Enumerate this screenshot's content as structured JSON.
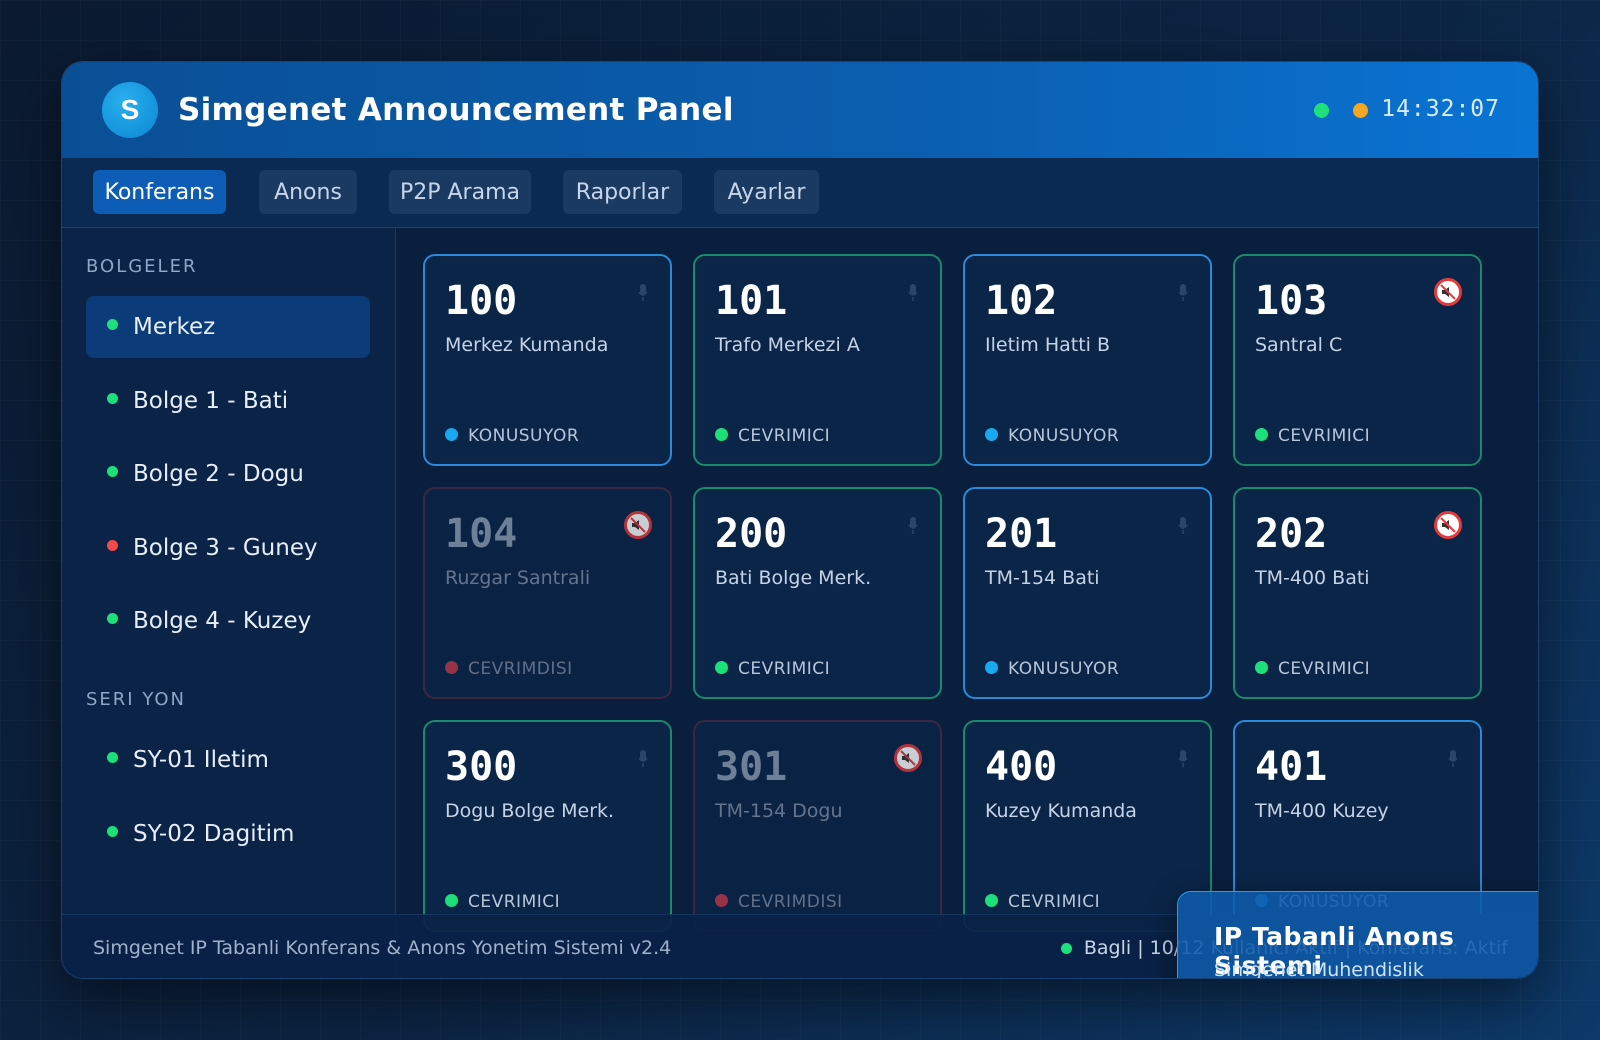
{
  "header": {
    "logo_letter": "S",
    "title": "Simgenet Announcement Panel",
    "clock": "14:32:07",
    "indicator_colors": [
      "#1de07a",
      "#f5a623"
    ]
  },
  "tabs": [
    {
      "label": "Konferans",
      "active": true
    },
    {
      "label": "Anons",
      "active": false
    },
    {
      "label": "P2P Arama",
      "active": false
    },
    {
      "label": "Raporlar",
      "active": false
    },
    {
      "label": "Ayarlar",
      "active": false
    }
  ],
  "sidebar": {
    "regions_label": "BOLGELER",
    "regions": [
      {
        "label": "Merkez",
        "color": "#1de07a",
        "active": true
      },
      {
        "label": "Bolge 1 - Bati",
        "color": "#1de07a",
        "active": false
      },
      {
        "label": "Bolge 2 - Dogu",
        "color": "#1de07a",
        "active": false
      },
      {
        "label": "Bolge 3 - Guney",
        "color": "#f04a4a",
        "active": false
      },
      {
        "label": "Bolge 4 - Kuzey",
        "color": "#1de07a",
        "active": false
      }
    ],
    "series_label": "SERI YON",
    "series": [
      {
        "label": "SY-01 Iletim",
        "color": "#1de07a"
      },
      {
        "label": "SY-02 Dagitim",
        "color": "#1de07a"
      }
    ]
  },
  "status_colors": {
    "KONUSUYOR": "#1aa9f0",
    "CEVRIMICI": "#1de07a",
    "CEVRIMDISI": "#c0394a"
  },
  "stations": [
    {
      "number": "100",
      "name": "Merkez Kumanda",
      "status": "KONUSUYOR",
      "state": "talking",
      "icon": "mic-icon"
    },
    {
      "number": "101",
      "name": "Trafo Merkezi A",
      "status": "CEVRIMICI",
      "state": "online",
      "icon": "mic-icon"
    },
    {
      "number": "102",
      "name": "Iletim Hatti B",
      "status": "KONUSUYOR",
      "state": "talking",
      "icon": "mic-icon"
    },
    {
      "number": "103",
      "name": "Santral C",
      "status": "CEVRIMICI",
      "state": "online",
      "icon": "mute-icon"
    },
    {
      "number": "104",
      "name": "Ruzgar Santrali",
      "status": "CEVRIMDISI",
      "state": "offline",
      "icon": "mute-icon"
    },
    {
      "number": "200",
      "name": "Bati Bolge Merk.",
      "status": "CEVRIMICI",
      "state": "online",
      "icon": "mic-icon"
    },
    {
      "number": "201",
      "name": "TM-154 Bati",
      "status": "KONUSUYOR",
      "state": "talking",
      "icon": "mic-icon"
    },
    {
      "number": "202",
      "name": "TM-400 Bati",
      "status": "CEVRIMICI",
      "state": "online",
      "icon": "mute-icon"
    },
    {
      "number": "300",
      "name": "Dogu Bolge Merk.",
      "status": "CEVRIMICI",
      "state": "online",
      "icon": "mic-icon"
    },
    {
      "number": "301",
      "name": "TM-154 Dogu",
      "status": "CEVRIMDISI",
      "state": "offline",
      "icon": "mute-icon"
    },
    {
      "number": "400",
      "name": "Kuzey Kumanda",
      "status": "CEVRIMICI",
      "state": "online",
      "icon": "mic-icon"
    },
    {
      "number": "401",
      "name": "TM-400 Kuzey",
      "status": "KONUSUYOR",
      "state": "talking",
      "icon": "mic-icon"
    }
  ],
  "footer": {
    "left": "Simgenet IP Tabanli Konferans & Anons Yonetim Sistemi v2.4",
    "right": "Bagli | 10/12 Kullanici Aktif | Konferans: Aktif"
  },
  "toast": {
    "title": "IP Tabanli Anons Sistemi",
    "subtitle": "Simgenet Muhendislik"
  }
}
